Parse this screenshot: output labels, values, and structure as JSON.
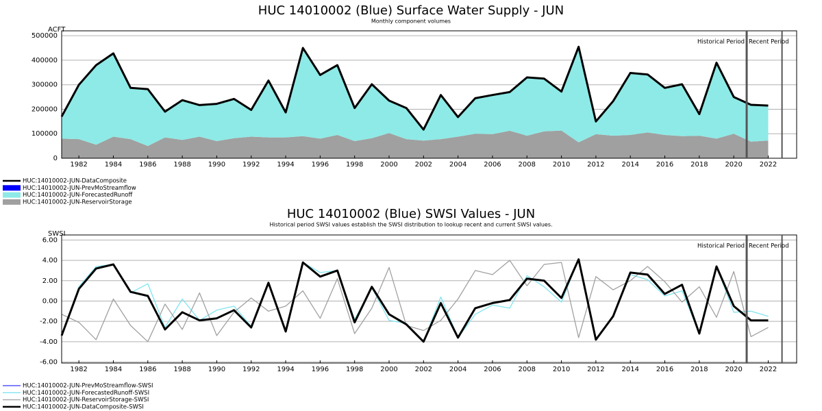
{
  "chart_data": [
    {
      "type": "area",
      "title": "HUC 14010002 (Blue) Surface Water Supply - JUN",
      "subtitle": "Monthly component volumes",
      "y_label": "ACFT",
      "x": [
        1981,
        1982,
        1983,
        1984,
        1985,
        1986,
        1987,
        1988,
        1989,
        1990,
        1991,
        1992,
        1993,
        1994,
        1995,
        1996,
        1997,
        1998,
        1999,
        2000,
        2001,
        2002,
        2003,
        2004,
        2005,
        2006,
        2007,
        2008,
        2009,
        2010,
        2011,
        2012,
        2013,
        2014,
        2015,
        2016,
        2017,
        2018,
        2019,
        2020,
        2021,
        2022
      ],
      "xlim": [
        1981,
        2023.65
      ],
      "xticks": [
        1982,
        1984,
        1986,
        1988,
        1990,
        1992,
        1994,
        1996,
        1998,
        2000,
        2002,
        2004,
        2006,
        2008,
        2010,
        2012,
        2014,
        2016,
        2018,
        2020,
        2022
      ],
      "ylim": [
        0,
        520000
      ],
      "yticks": [
        0,
        100000,
        200000,
        300000,
        400000,
        500000
      ],
      "grid": true,
      "annotations": [
        "Historical Period",
        "Recent Period"
      ],
      "period_lines": [
        2020.75,
        2022.8
      ],
      "series": [
        {
          "name": "HUC:14010002-JUN-DataComposite",
          "kind": "line",
          "color": "#000000",
          "values": [
            170000,
            300000,
            380000,
            428000,
            287000,
            282000,
            190000,
            237000,
            217000,
            222000,
            242000,
            197000,
            317000,
            187000,
            450000,
            340000,
            380000,
            205000,
            302000,
            235000,
            205000,
            117000,
            258000,
            168000,
            245000,
            258000,
            270000,
            330000,
            325000,
            272000,
            455000,
            150000,
            233000,
            348000,
            342000,
            287000,
            302000,
            180000,
            390000,
            250000,
            218000,
            215000
          ]
        },
        {
          "name": "HUC:14010002-JUN-PrevMoStreamflow",
          "kind": "area",
          "color": "#0000ff",
          "values": [
            0,
            0,
            0,
            0,
            0,
            0,
            0,
            0,
            0,
            0,
            0,
            0,
            0,
            0,
            0,
            0,
            0,
            0,
            0,
            0,
            0,
            0,
            0,
            0,
            0,
            0,
            0,
            0,
            0,
            0,
            0,
            0,
            0,
            0,
            0,
            0,
            0,
            0,
            0,
            0,
            0,
            0
          ]
        },
        {
          "name": "HUC:14010002-JUN-ForecastedRunoff",
          "kind": "area",
          "color": "#8eeae6",
          "values": [
            90000,
            222000,
            325000,
            340000,
            209000,
            232000,
            105000,
            162000,
            129000,
            152000,
            160000,
            109000,
            232000,
            102000,
            360000,
            260000,
            285000,
            135000,
            220000,
            132000,
            127000,
            45000,
            180000,
            80000,
            145000,
            160000,
            158000,
            238000,
            215000,
            159000,
            390000,
            52000,
            141000,
            253000,
            237000,
            192000,
            212000,
            88000,
            310000,
            150000,
            150000,
            143000
          ]
        },
        {
          "name": "HUC:14010002-JUN-ReservoirStorage",
          "kind": "area",
          "color": "#a0a0a0",
          "values": [
            80000,
            78000,
            55000,
            88000,
            78000,
            50000,
            85000,
            75000,
            88000,
            70000,
            82000,
            88000,
            85000,
            85000,
            90000,
            80000,
            95000,
            70000,
            82000,
            103000,
            78000,
            72000,
            78000,
            88000,
            100000,
            98000,
            112000,
            92000,
            110000,
            113000,
            65000,
            98000,
            92000,
            95000,
            105000,
            95000,
            90000,
            92000,
            80000,
            100000,
            68000,
            72000
          ]
        }
      ]
    },
    {
      "type": "line",
      "title": "HUC 14010002 (Blue) SWSI Values - JUN",
      "subtitle": "Historical period SWSI values establish the SWSI distribution to lookup recent and current SWSI values.",
      "y_label": "SWSI",
      "x": [
        1981,
        1982,
        1983,
        1984,
        1985,
        1986,
        1987,
        1988,
        1989,
        1990,
        1991,
        1992,
        1993,
        1994,
        1995,
        1996,
        1997,
        1998,
        1999,
        2000,
        2001,
        2002,
        2003,
        2004,
        2005,
        2006,
        2007,
        2008,
        2009,
        2010,
        2011,
        2012,
        2013,
        2014,
        2015,
        2016,
        2017,
        2018,
        2019,
        2020,
        2021,
        2022
      ],
      "xlim": [
        1981,
        2023.65
      ],
      "xticks": [
        1982,
        1984,
        1986,
        1988,
        1990,
        1992,
        1994,
        1996,
        1998,
        2000,
        2002,
        2004,
        2006,
        2008,
        2010,
        2012,
        2014,
        2016,
        2018,
        2020,
        2022
      ],
      "ylim": [
        -6.1,
        6.5
      ],
      "yticks": [
        {
          "value": -6,
          "label": "-6.00"
        },
        {
          "value": -4,
          "label": "-4.00"
        },
        {
          "value": -2,
          "label": "-2.00"
        },
        {
          "value": 0,
          "label": "0.00"
        },
        {
          "value": 2,
          "label": "2.00"
        },
        {
          "value": 4,
          "label": "4.00"
        },
        {
          "value": 6,
          "label": "6.00"
        }
      ],
      "grid": true,
      "annotations": [
        "Historical Period",
        "Recent Period"
      ],
      "period_lines": [
        2020.75,
        2022.8
      ],
      "series": [
        {
          "name": "HUC:14010002-JUN-PrevMoStreamflow-SWSI",
          "kind": "line",
          "color": "#0000ff",
          "width": 1,
          "values": [
            null,
            null,
            null,
            null,
            null,
            null,
            null,
            null,
            null,
            null,
            null,
            null,
            null,
            null,
            null,
            null,
            null,
            null,
            null,
            null,
            null,
            null,
            null,
            null,
            null,
            null,
            null,
            null,
            null,
            null,
            null,
            null,
            null,
            null,
            null,
            null,
            null,
            null,
            null,
            null,
            null,
            null
          ]
        },
        {
          "name": "HUC:14010002-JUN-ForecastedRunoff-SWSI",
          "kind": "line",
          "color": "#7fe4f0",
          "width": 1.3,
          "values": [
            -3.4,
            1.4,
            3.4,
            3.6,
            0.8,
            1.7,
            -2.6,
            0.2,
            -1.9,
            -0.9,
            -0.5,
            -2.5,
            1.7,
            -3.0,
            3.8,
            2.8,
            3.0,
            -1.8,
            1.3,
            -1.9,
            -2.2,
            -4.0,
            0.4,
            -3.6,
            -1.3,
            -0.4,
            -0.7,
            2.5,
            1.4,
            -0.1,
            4.1,
            -3.8,
            -1.5,
            2.6,
            2.1,
            0.5,
            1.0,
            -3.2,
            3.4,
            -1.1,
            -1.0,
            -1.5
          ]
        },
        {
          "name": "HUC:14010002-JUN-ReservoirStorage-SWSI",
          "kind": "line",
          "color": "#a0a0a0",
          "width": 1.3,
          "values": [
            -1.3,
            -2.1,
            -3.8,
            0.2,
            -2.4,
            -4.0,
            -0.3,
            -2.8,
            0.8,
            -3.4,
            -1.1,
            0.3,
            -1.0,
            -0.5,
            1.0,
            -1.7,
            2.2,
            -3.2,
            -0.7,
            3.3,
            -2.4,
            -2.9,
            -1.9,
            0.2,
            3.0,
            2.6,
            4.0,
            1.5,
            3.6,
            3.8,
            -3.6,
            2.4,
            1.1,
            2.0,
            3.4,
            1.9,
            -0.1,
            1.4,
            -1.6,
            2.9,
            -3.5,
            -2.6
          ]
        },
        {
          "name": "HUC:14010002-JUN-DataComposite-SWSI",
          "kind": "line",
          "color": "#000000",
          "width": 3,
          "values": [
            -3.4,
            1.2,
            3.2,
            3.6,
            0.9,
            0.5,
            -2.8,
            -1.1,
            -1.9,
            -1.7,
            -0.9,
            -2.6,
            1.8,
            -3.0,
            3.8,
            2.4,
            3.0,
            -2.1,
            1.4,
            -1.3,
            -2.3,
            -4.0,
            -0.2,
            -3.6,
            -0.7,
            -0.2,
            0.1,
            2.2,
            2.0,
            0.3,
            4.1,
            -3.8,
            -1.5,
            2.8,
            2.6,
            0.7,
            1.6,
            -3.2,
            3.4,
            -0.5,
            -1.9,
            -1.9
          ]
        }
      ]
    }
  ]
}
